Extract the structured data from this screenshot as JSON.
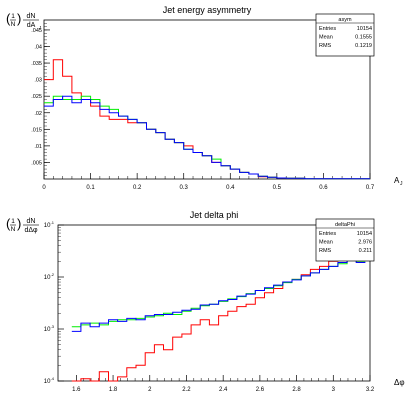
{
  "chart_data": [
    {
      "type": "histogram",
      "title": "Jet energy asymmetry",
      "ylabel": {
        "frac_num": "1",
        "frac_den": "N",
        "d_num": "dN",
        "d_den": "dA",
        "d_den_sub": "J"
      },
      "xlabel": {
        "main": "A",
        "sub": "J"
      },
      "xlim": [
        0,
        0.7
      ],
      "ylim": [
        0,
        0.048
      ],
      "log_y": false,
      "x_ticks": [
        0,
        0.1,
        0.2,
        0.3,
        0.4,
        0.5,
        0.6,
        0.7
      ],
      "y_ticks": [
        0.005,
        0.01,
        0.015,
        0.02,
        0.025,
        0.03,
        0.035,
        0.04,
        0.045
      ],
      "stats": {
        "name": "asym",
        "rows": [
          {
            "label": "Entries",
            "value": "10154"
          },
          {
            "label": "Mean",
            "value": "0.1555"
          },
          {
            "label": "RMS",
            "value": "0.1219"
          }
        ]
      },
      "series": [
        {
          "color": "#ff0000",
          "x": [
            0.01,
            0.03,
            0.05,
            0.07,
            0.09,
            0.11,
            0.13,
            0.15,
            0.17,
            0.19,
            0.21,
            0.23,
            0.25,
            0.27,
            0.29,
            0.31,
            0.33,
            0.35,
            0.37,
            0.39,
            0.41,
            0.43,
            0.45,
            0.47,
            0.49,
            0.51,
            0.53,
            0.55,
            0.57,
            0.59,
            0.61,
            0.63,
            0.65,
            0.67,
            0.69
          ],
          "y": [
            0.03,
            0.036,
            0.031,
            0.026,
            0.024,
            0.022,
            0.019,
            0.018,
            0.018,
            0.017,
            0.017,
            0.015,
            0.014,
            0.012,
            0.011,
            0.01,
            0.008,
            0.007,
            0.005,
            0.004,
            0.003,
            0.002,
            0.0015,
            0.0007,
            0.0005,
            0.0003,
            0.0002,
            0.0002,
            0.0001,
            0.0001,
            0.0001,
            0.0001,
            0.0001,
            0.0001,
            0.0001
          ]
        },
        {
          "color": "#00ee00",
          "x": [
            0.01,
            0.03,
            0.05,
            0.07,
            0.09,
            0.11,
            0.13,
            0.15,
            0.17,
            0.19,
            0.21,
            0.23,
            0.25,
            0.27,
            0.29,
            0.31,
            0.33,
            0.35,
            0.37,
            0.39,
            0.41,
            0.43,
            0.45,
            0.47,
            0.49,
            0.51,
            0.53,
            0.55,
            0.57,
            0.59,
            0.61,
            0.63,
            0.65,
            0.67,
            0.69
          ],
          "y": [
            0.023,
            0.025,
            0.024,
            0.024,
            0.025,
            0.024,
            0.022,
            0.021,
            0.019,
            0.018,
            0.017,
            0.015,
            0.014,
            0.012,
            0.011,
            0.009,
            0.008,
            0.007,
            0.006,
            0.004,
            0.003,
            0.002,
            0.0015,
            0.0008,
            0.0005,
            0.0003,
            0.0002,
            0.0002,
            0.0001,
            0.0001,
            0.0001,
            0.0001,
            0.0001,
            0.0001,
            0.0001
          ]
        },
        {
          "color": "#0000ff",
          "x": [
            0.01,
            0.03,
            0.05,
            0.07,
            0.09,
            0.11,
            0.13,
            0.15,
            0.17,
            0.19,
            0.21,
            0.23,
            0.25,
            0.27,
            0.29,
            0.31,
            0.33,
            0.35,
            0.37,
            0.39,
            0.41,
            0.43,
            0.45,
            0.47,
            0.49,
            0.51,
            0.53,
            0.55,
            0.57,
            0.59,
            0.61,
            0.63,
            0.65,
            0.67,
            0.69
          ],
          "y": [
            0.022,
            0.024,
            0.025,
            0.023,
            0.024,
            0.023,
            0.021,
            0.02,
            0.019,
            0.018,
            0.017,
            0.015,
            0.014,
            0.012,
            0.011,
            0.009,
            0.008,
            0.007,
            0.005,
            0.004,
            0.003,
            0.002,
            0.0015,
            0.0008,
            0.0005,
            0.0003,
            0.0002,
            0.0002,
            0.0001,
            0.0001,
            0.0001,
            0.0001,
            0.0001,
            0.0001,
            0.0001
          ]
        }
      ]
    },
    {
      "type": "histogram",
      "title": "Jet delta phi",
      "ylabel": {
        "frac_num": "1",
        "frac_den": "N",
        "d_num": "dN",
        "d_den": "dΔφ",
        "d_den_sub": ""
      },
      "xlabel": {
        "main": "Δφ",
        "sub": ""
      },
      "xlim": [
        1.5,
        3.2
      ],
      "ylim": [
        0.0001,
        0.1
      ],
      "log_y": true,
      "x_ticks": [
        1.6,
        1.8,
        2,
        2.2,
        2.4,
        2.6,
        2.8,
        3,
        3.2
      ],
      "y_ticks": [
        {
          "value": 0.0001,
          "base": "10",
          "exp": "-4"
        },
        {
          "value": 0.001,
          "base": "10",
          "exp": "-3"
        },
        {
          "value": 0.01,
          "base": "10",
          "exp": "-2"
        },
        {
          "value": 0.1,
          "base": "10",
          "exp": "-1"
        }
      ],
      "stats": {
        "name": "deltaPhi",
        "rows": [
          {
            "label": "Entries",
            "value": "10154"
          },
          {
            "label": "Mean",
            "value": "2.976"
          },
          {
            "label": "RMS",
            "value": "0.211"
          }
        ]
      },
      "series": [
        {
          "color": "#ff0000",
          "x": [
            1.6,
            1.65,
            1.7,
            1.75,
            1.8,
            1.85,
            1.9,
            1.95,
            2.0,
            2.05,
            2.1,
            2.15,
            2.2,
            2.25,
            2.3,
            2.35,
            2.4,
            2.45,
            2.5,
            2.55,
            2.6,
            2.65,
            2.7,
            2.75,
            2.8,
            2.85,
            2.9,
            2.95,
            3.0,
            3.05,
            3.1,
            3.15
          ],
          "y": [
            0.0001,
            0.00011,
            0.0001,
            0.00015,
            0.0001,
            0.00012,
            0.00018,
            0.0002,
            0.00035,
            0.0005,
            0.0004,
            0.0007,
            0.0008,
            0.0012,
            0.0015,
            0.0012,
            0.0018,
            0.0022,
            0.0027,
            0.003,
            0.004,
            0.005,
            0.006,
            0.008,
            0.009,
            0.011,
            0.014,
            0.016,
            0.02,
            0.025,
            0.03,
            0.028
          ]
        },
        {
          "color": "#00ee00",
          "x": [
            1.6,
            1.65,
            1.7,
            1.75,
            1.8,
            1.85,
            1.9,
            1.95,
            2.0,
            2.05,
            2.1,
            2.15,
            2.2,
            2.25,
            2.3,
            2.35,
            2.4,
            2.45,
            2.5,
            2.55,
            2.6,
            2.65,
            2.7,
            2.75,
            2.8,
            2.85,
            2.9,
            2.95,
            3.0,
            3.05,
            3.1,
            3.15
          ],
          "y": [
            0.0011,
            0.0012,
            0.0013,
            0.0012,
            0.0014,
            0.0015,
            0.0015,
            0.0016,
            0.0017,
            0.0018,
            0.002,
            0.0019,
            0.0022,
            0.0025,
            0.0028,
            0.003,
            0.0034,
            0.0038,
            0.0042,
            0.0048,
            0.0055,
            0.006,
            0.0068,
            0.0078,
            0.009,
            0.0105,
            0.012,
            0.014,
            0.016,
            0.018,
            0.021,
            0.02
          ]
        },
        {
          "color": "#0000ff",
          "x": [
            1.6,
            1.65,
            1.7,
            1.75,
            1.8,
            1.85,
            1.9,
            1.95,
            2.0,
            2.05,
            2.1,
            2.15,
            2.2,
            2.25,
            2.3,
            2.35,
            2.4,
            2.45,
            2.5,
            2.55,
            2.6,
            2.65,
            2.7,
            2.75,
            2.8,
            2.85,
            2.9,
            2.95,
            3.0,
            3.05,
            3.1,
            3.15
          ],
          "y": [
            0.0009,
            0.0013,
            0.0011,
            0.0013,
            0.0015,
            0.0014,
            0.0016,
            0.0015,
            0.0018,
            0.0019,
            0.0019,
            0.0021,
            0.0023,
            0.0024,
            0.0029,
            0.003,
            0.0035,
            0.0037,
            0.0043,
            0.0047,
            0.0055,
            0.0062,
            0.007,
            0.008,
            0.0088,
            0.0105,
            0.012,
            0.014,
            0.016,
            0.019,
            0.021,
            0.019
          ]
        }
      ]
    }
  ]
}
